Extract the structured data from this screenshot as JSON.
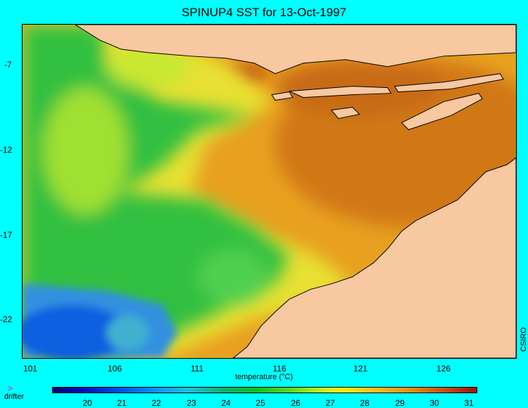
{
  "title": "SPINUP4 SST for 13-Oct-1997",
  "y_axis": {
    "ticks": [
      "-7",
      "-12",
      "-17",
      "-22"
    ]
  },
  "x_axis": {
    "ticks": [
      "101",
      "106",
      "111",
      "116",
      "121",
      "126"
    ]
  },
  "credit": "CSIRO",
  "legend": {
    "title": "temperature (°C)",
    "ticks": [
      "20",
      "21",
      "22",
      "23",
      "24",
      "25",
      "26",
      "27",
      "28",
      "29",
      "30",
      "31"
    ]
  },
  "drifter": {
    "icon": "drifter-marker-icon",
    "label": "drifter",
    "color": "#e000e0"
  },
  "colors": {
    "background": "#00ffff",
    "land": "#f8c8a0",
    "warm_sea": "#e8a020",
    "cool_sea": "#10b040",
    "cold_sea": "#1060e0"
  }
}
